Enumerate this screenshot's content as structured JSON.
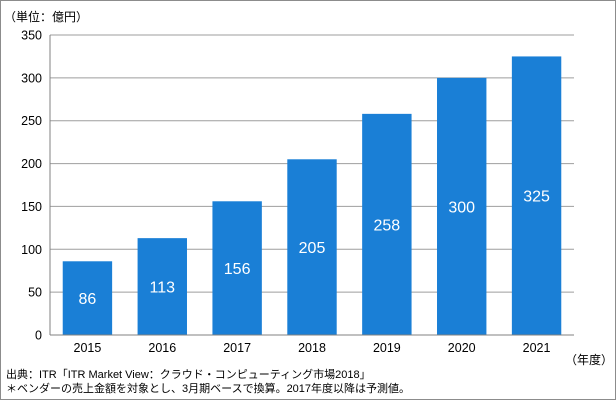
{
  "chart_data": {
    "type": "bar",
    "unit_label": "（単位：億円）",
    "categories": [
      "2015",
      "2016",
      "2017",
      "2018",
      "2019",
      "2020",
      "2021"
    ],
    "values": [
      86,
      113,
      156,
      205,
      258,
      300,
      325
    ],
    "value_labels": [
      "86",
      "113",
      "156",
      "205",
      "258",
      "300",
      "325"
    ],
    "x_unit_label": "（年度）",
    "ylim": [
      0,
      350
    ],
    "y_ticks": [
      0,
      50,
      100,
      150,
      200,
      250,
      300,
      350
    ],
    "grid": true,
    "bar_color": "#1a7fd6",
    "source": "出典：ITR「ITR Market View：クラウド・コンピューティング市場2018」",
    "note": "＊ベンダーの売上金額を対象とし、3月期ベースで換算。2017年度以降は予測値。"
  }
}
